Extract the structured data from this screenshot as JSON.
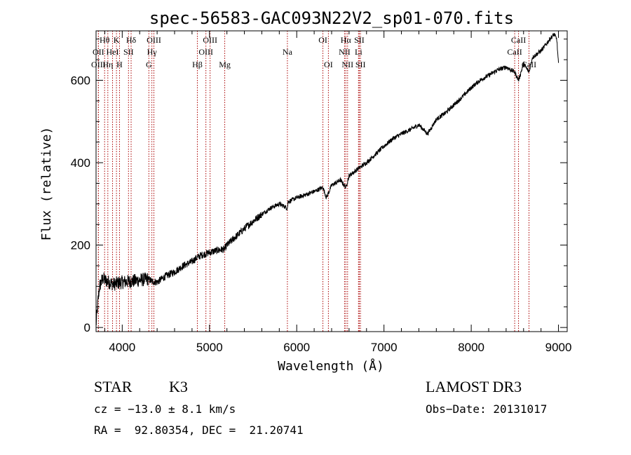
{
  "chart_data": {
    "type": "line",
    "title": "spec-56583-GAC093N22V2_sp01-070.fits",
    "xlabel": "Wavelength (Å)",
    "ylabel": "Flux (relative)",
    "xlim": [
      3700,
      9100
    ],
    "ylim": [
      -10,
      720
    ],
    "xticks": [
      4000,
      5000,
      6000,
      7000,
      8000,
      9000
    ],
    "yticks": [
      0,
      200,
      400,
      600
    ],
    "x_tick_labels": [
      "4000",
      "5000",
      "6000",
      "7000",
      "8000",
      "9000"
    ],
    "y_tick_labels": [
      "0",
      "200",
      "400",
      "600"
    ],
    "series": [
      {
        "name": "spectrum",
        "x": [
          3700,
          3720,
          3740,
          3760,
          3780,
          3800,
          3850,
          3900,
          3950,
          4000,
          4100,
          4200,
          4300,
          4340,
          4400,
          4500,
          4600,
          4700,
          4800,
          4860,
          4900,
          5000,
          5100,
          5170,
          5200,
          5300,
          5400,
          5500,
          5600,
          5700,
          5800,
          5893,
          5900,
          6000,
          6100,
          6200,
          6300,
          6340,
          6400,
          6500,
          6563,
          6600,
          6700,
          6800,
          6900,
          7000,
          7100,
          7200,
          7300,
          7400,
          7500,
          7600,
          7700,
          7800,
          7900,
          8000,
          8100,
          8200,
          8300,
          8400,
          8498,
          8542,
          8600,
          8662,
          8700,
          8800,
          8850,
          8900,
          8950,
          8980,
          9000
        ],
        "y": [
          5,
          60,
          100,
          110,
          120,
          115,
          110,
          105,
          108,
          110,
          112,
          115,
          118,
          112,
          110,
          125,
          135,
          150,
          160,
          170,
          175,
          182,
          188,
          190,
          200,
          220,
          240,
          258,
          275,
          290,
          300,
          290,
          305,
          315,
          322,
          330,
          340,
          315,
          345,
          358,
          340,
          368,
          385,
          400,
          420,
          440,
          458,
          470,
          480,
          492,
          470,
          505,
          520,
          540,
          560,
          582,
          600,
          612,
          625,
          632,
          620,
          600,
          640,
          620,
          655,
          672,
          685,
          700,
          712,
          700,
          640
        ]
      }
    ],
    "lines": [
      {
        "label": "Hθ",
        "row": 0,
        "wl": 3798
      },
      {
        "label": "K",
        "row": 0,
        "wl": 3934
      },
      {
        "label": "Hδ",
        "row": 0,
        "wl": 4102
      },
      {
        "label": "OIII",
        "row": 0,
        "wl": 4363
      },
      {
        "label": "OIII",
        "row": 0,
        "wl": 5007
      },
      {
        "label": "OI",
        "row": 0,
        "wl": 6300
      },
      {
        "label": "Hα",
        "row": 0,
        "wl": 6563
      },
      {
        "label": "SII",
        "row": 0,
        "wl": 6717
      },
      {
        "label": "CaII",
        "row": 0,
        "wl": 8542
      },
      {
        "label": "OII",
        "row": 1,
        "wl": 3727
      },
      {
        "label": "HeI",
        "row": 1,
        "wl": 3889
      },
      {
        "label": "SII",
        "row": 1,
        "wl": 4072
      },
      {
        "label": "Hγ",
        "row": 1,
        "wl": 4340
      },
      {
        "label": "OIII",
        "row": 1,
        "wl": 4959
      },
      {
        "label": "Na",
        "row": 1,
        "wl": 5893
      },
      {
        "label": "NII",
        "row": 1,
        "wl": 6548
      },
      {
        "label": "Li",
        "row": 1,
        "wl": 6708
      },
      {
        "label": "CaII",
        "row": 1,
        "wl": 8498
      },
      {
        "label": "OIII",
        "row": 2,
        "wl": 3727
      },
      {
        "label": "Hη",
        "row": 2,
        "wl": 3835
      },
      {
        "label": "H",
        "row": 2,
        "wl": 3969
      },
      {
        "label": "G",
        "row": 2,
        "wl": 4305
      },
      {
        "label": "Hβ",
        "row": 2,
        "wl": 4861
      },
      {
        "label": "Mg",
        "row": 2,
        "wl": 5175
      },
      {
        "label": "OI",
        "row": 2,
        "wl": 6363
      },
      {
        "label": "NII",
        "row": 2,
        "wl": 6583
      },
      {
        "label": "SII",
        "row": 2,
        "wl": 6731
      },
      {
        "label": "CaII",
        "row": 2,
        "wl": 8662
      }
    ],
    "line_color": "#aa0000"
  },
  "info": {
    "class_label": "STAR",
    "subclass": "K3",
    "survey": "LAMOST DR3",
    "cz": "cz = −13.0 ± 8.1 km/s",
    "obs_date": "Obs−Date: 20131017",
    "coords": "RA =  92.80354, DEC =  21.20741"
  }
}
